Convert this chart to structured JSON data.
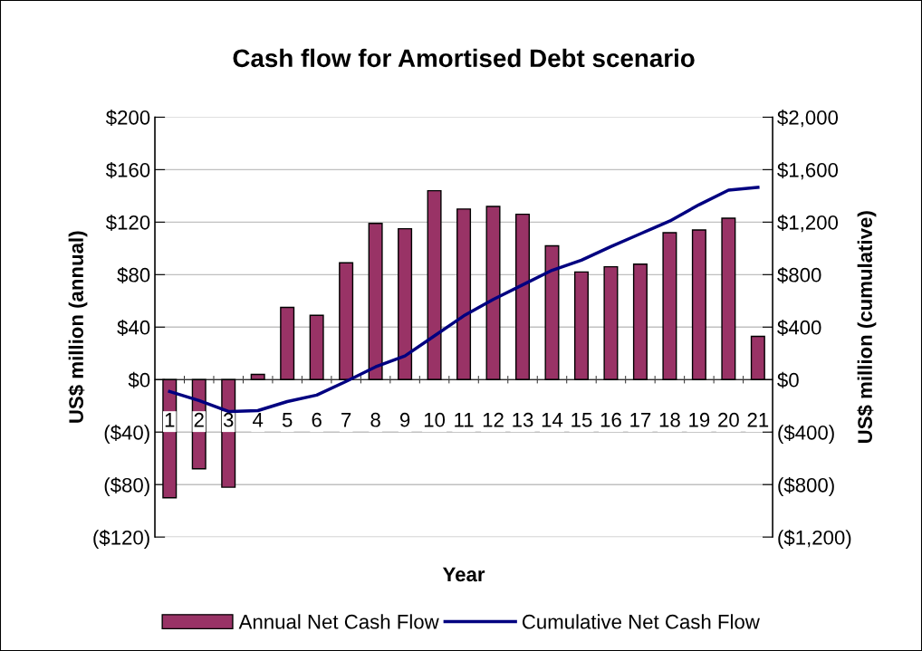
{
  "chart_data": {
    "type": "bar",
    "title": "Cash flow for Amortised Debt scenario",
    "xlabel": "Year",
    "ylabel": "US$ million (annual)",
    "y2label": "US$ million (cumulative)",
    "categories": [
      "1",
      "2",
      "3",
      "4",
      "5",
      "6",
      "7",
      "8",
      "9",
      "10",
      "11",
      "12",
      "13",
      "14",
      "15",
      "16",
      "17",
      "18",
      "19",
      "20",
      "21"
    ],
    "series": [
      {
        "name": "Annual Net Cash Flow",
        "color": "#993366",
        "values": [
          -90,
          -68,
          -82,
          4,
          55,
          49,
          89,
          119,
          115,
          144,
          130,
          132,
          126,
          102,
          82,
          86,
          88,
          112,
          114,
          123,
          33
        ]
      },
      {
        "name": "Cumulative Net Cash Flow",
        "type": "line",
        "axis": "y2",
        "color": "#000080",
        "values": [
          -90,
          -160,
          -243,
          -236,
          -167,
          -118,
          -14,
          97,
          180,
          333,
          486,
          611,
          722,
          833,
          910,
          1014,
          1111,
          1208,
          1333,
          1444,
          1465
        ]
      }
    ],
    "ylim": [
      -120,
      200
    ],
    "yticks": [
      {
        "value": -120,
        "label": "($120)"
      },
      {
        "value": -80,
        "label": "($80)"
      },
      {
        "value": -40,
        "label": "($40)"
      },
      {
        "value": 0,
        "label": "$0"
      },
      {
        "value": 40,
        "label": "$40"
      },
      {
        "value": 80,
        "label": "$80"
      },
      {
        "value": 120,
        "label": "$120"
      },
      {
        "value": 160,
        "label": "$160"
      },
      {
        "value": 200,
        "label": "$200"
      }
    ],
    "y2lim": [
      -1200,
      2000
    ],
    "y2ticks": [
      {
        "value": -1200,
        "label": "($1,200)"
      },
      {
        "value": -800,
        "label": "($800)"
      },
      {
        "value": -400,
        "label": "($400)"
      },
      {
        "value": 0,
        "label": "$0"
      },
      {
        "value": 400,
        "label": "$400"
      },
      {
        "value": 800,
        "label": "$800"
      },
      {
        "value": 1200,
        "label": "$1,200"
      },
      {
        "value": 1600,
        "label": "$1,600"
      },
      {
        "value": 2000,
        "label": "$2,000"
      }
    ],
    "grid": "y",
    "legend": "bottom",
    "marker": "none",
    "line_style": "solid"
  }
}
